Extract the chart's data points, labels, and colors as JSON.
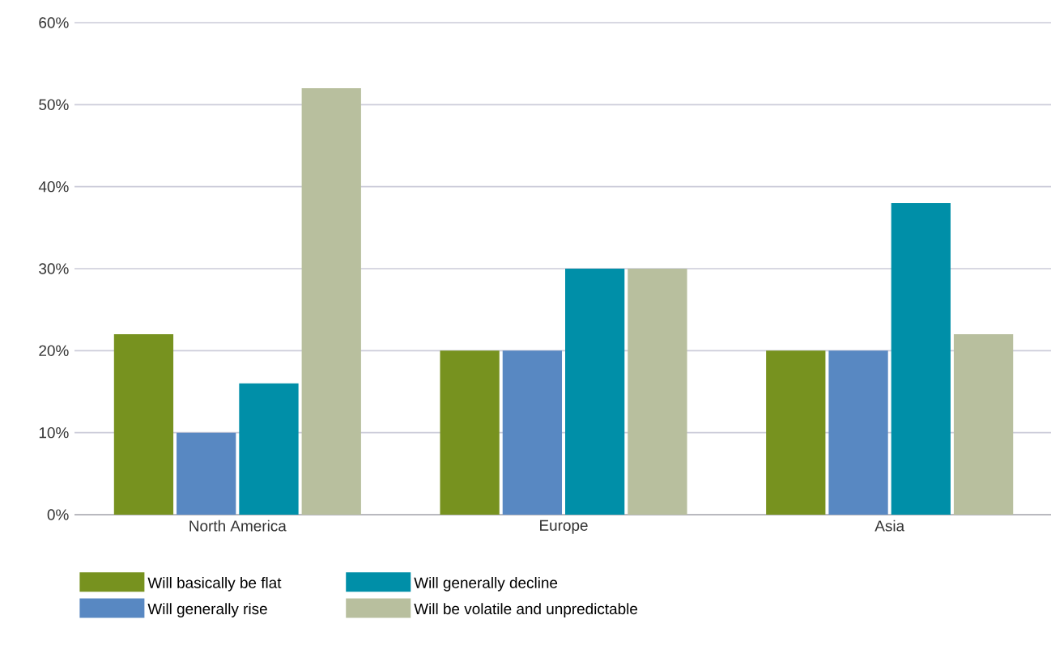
{
  "chart_data": {
    "type": "bar",
    "categories": [
      "North America",
      "Europe",
      "Asia"
    ],
    "series": [
      {
        "name": "Will basically be flat",
        "color": "#77921f",
        "values": [
          22,
          20,
          20
        ]
      },
      {
        "name": "Will generally rise",
        "color": "#5888c2",
        "values": [
          10,
          20,
          20
        ]
      },
      {
        "name": "Will generally decline",
        "color": "#008fa8",
        "values": [
          16,
          30,
          38
        ]
      },
      {
        "name": "Will be volatile and unpredictable",
        "color": "#b8bf9e",
        "values": [
          52,
          30,
          22
        ]
      }
    ],
    "ylim": [
      0,
      60
    ],
    "yticks": [
      {
        "value": 0,
        "label": "0%"
      },
      {
        "value": 10,
        "label": "10%"
      },
      {
        "value": 20,
        "label": "20%"
      },
      {
        "value": 30,
        "label": "30%"
      },
      {
        "value": 40,
        "label": "40%"
      },
      {
        "value": 50,
        "label": "50%"
      },
      {
        "value": 60,
        "label": "60%"
      }
    ],
    "grid": "y",
    "legend": "bottom"
  }
}
